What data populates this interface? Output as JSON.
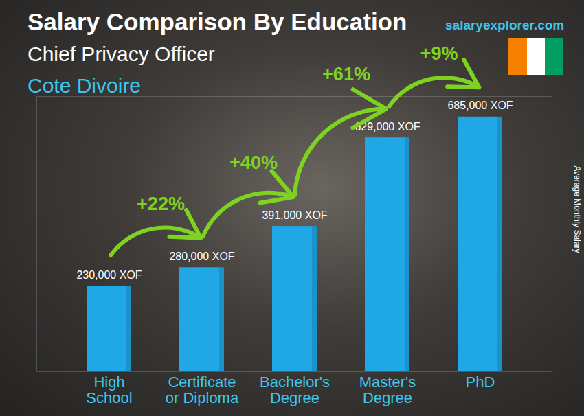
{
  "chart_data": {
    "type": "bar",
    "title": "Salary Comparison By Education",
    "subtitle": "Chief Privacy Officer",
    "location": "Cote Divoire",
    "source": "salaryexplorer.com",
    "ylabel": "Average Monthly Salary",
    "categories": [
      "High\nSchool",
      "Certificate\nor Diploma",
      "Bachelor's\nDegree",
      "Master's\nDegree",
      "PhD"
    ],
    "values": [
      230000,
      280000,
      391000,
      629000,
      685000
    ],
    "value_labels": [
      "230,000 XOF",
      "280,000 XOF",
      "391,000 XOF",
      "629,000 XOF",
      "685,000 XOF"
    ],
    "annotations": [
      "+22%",
      "+40%",
      "+61%",
      "+9%"
    ],
    "color": "#1fa7e6",
    "ylim": [
      0,
      740000
    ],
    "yticks": [],
    "grid": false,
    "data_labels": true,
    "tick_labels": "x"
  }
}
